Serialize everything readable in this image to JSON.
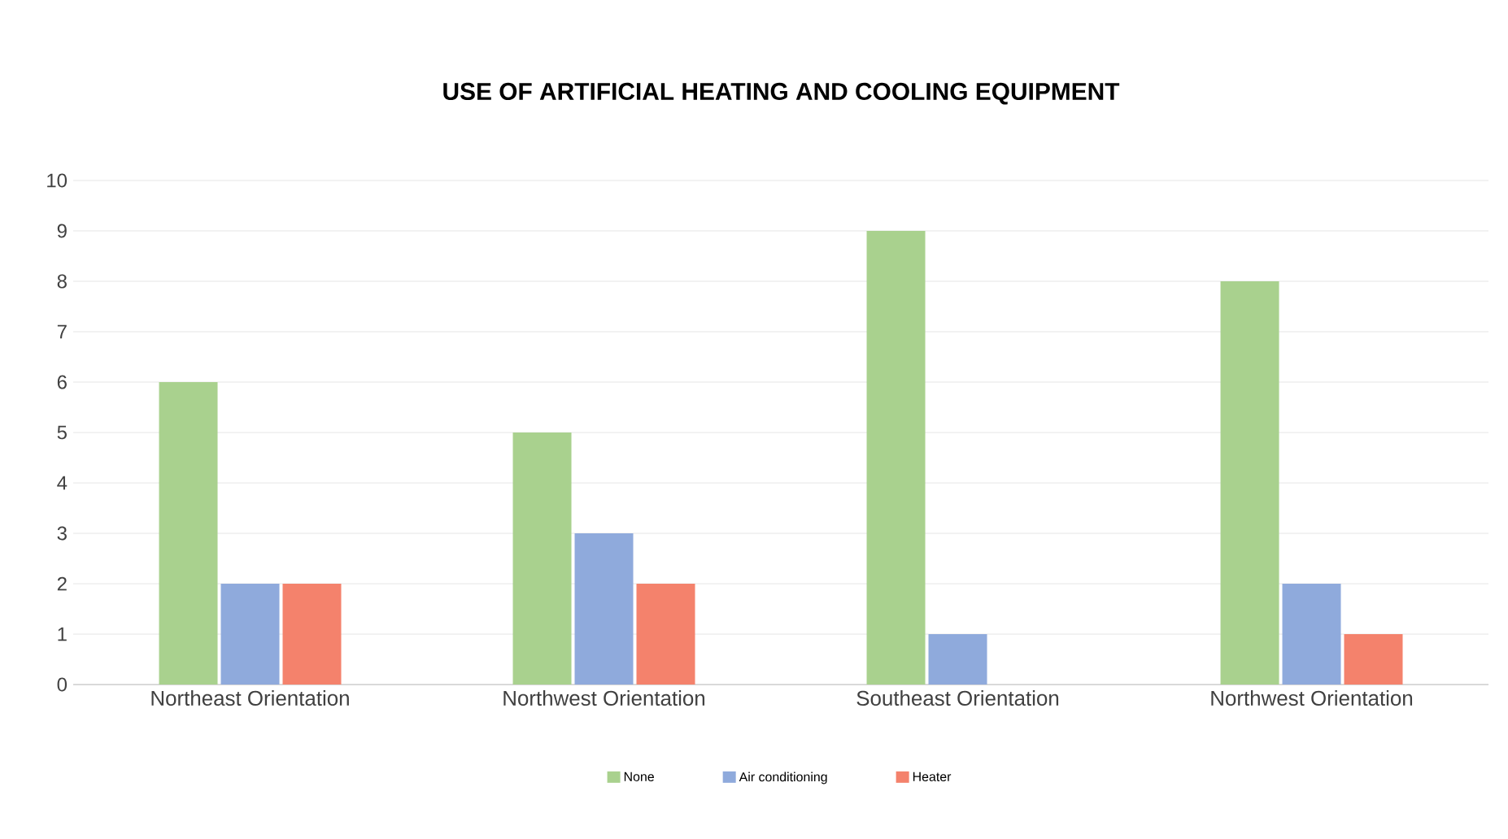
{
  "chart_data": {
    "type": "bar",
    "title": "USE OF ARTIFICIAL HEATING AND COOLING EQUIPMENT",
    "categories": [
      "Northeast Orientation",
      "Northwest Orientation",
      "Southeast Orientation",
      "Northwest Orientation"
    ],
    "series": [
      {
        "name": "None",
        "color": "#a9d18e",
        "values": [
          6,
          5,
          9,
          8
        ]
      },
      {
        "name": "Air conditioning",
        "color": "#8faadc",
        "values": [
          2,
          3,
          1,
          2
        ]
      },
      {
        "name": "Heater",
        "color": "#f4826c",
        "values": [
          2,
          2,
          0,
          1
        ]
      }
    ],
    "ylim": [
      0,
      10
    ],
    "yticks": [
      0,
      1,
      2,
      3,
      4,
      5,
      6,
      7,
      8,
      9,
      10
    ],
    "grid": "y",
    "legend": "bottom"
  }
}
